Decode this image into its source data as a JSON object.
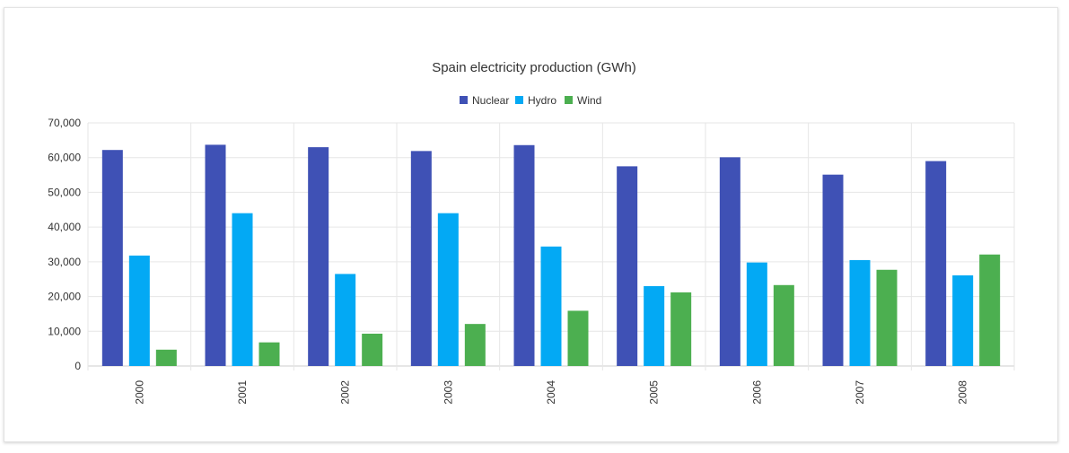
{
  "chart_data": {
    "type": "bar",
    "title": "Spain electricity production (GWh)",
    "categories": [
      "2000",
      "2001",
      "2002",
      "2003",
      "2004",
      "2005",
      "2006",
      "2007",
      "2008"
    ],
    "series": [
      {
        "name": "Nuclear",
        "color": "#3f51b5",
        "values": [
          62200,
          63700,
          63000,
          61900,
          63600,
          57500,
          60100,
          55100,
          59000
        ]
      },
      {
        "name": "Hydro",
        "color": "#03a9f4",
        "values": [
          31800,
          44000,
          26500,
          44000,
          34400,
          23000,
          29800,
          30500,
          26100
        ]
      },
      {
        "name": "Wind",
        "color": "#4caf50",
        "values": [
          4700,
          6800,
          9300,
          12100,
          15900,
          21200,
          23300,
          27700,
          32100
        ]
      }
    ],
    "ylim": [
      0,
      70000
    ],
    "yticks": [
      0,
      10000,
      20000,
      30000,
      40000,
      50000,
      60000,
      70000
    ],
    "ytick_labels": [
      "0",
      "10,000",
      "20,000",
      "30,000",
      "40,000",
      "50,000",
      "60,000",
      "70,000"
    ],
    "xlabel": "",
    "ylabel": "",
    "grid": true,
    "legend_position": "top-center"
  }
}
